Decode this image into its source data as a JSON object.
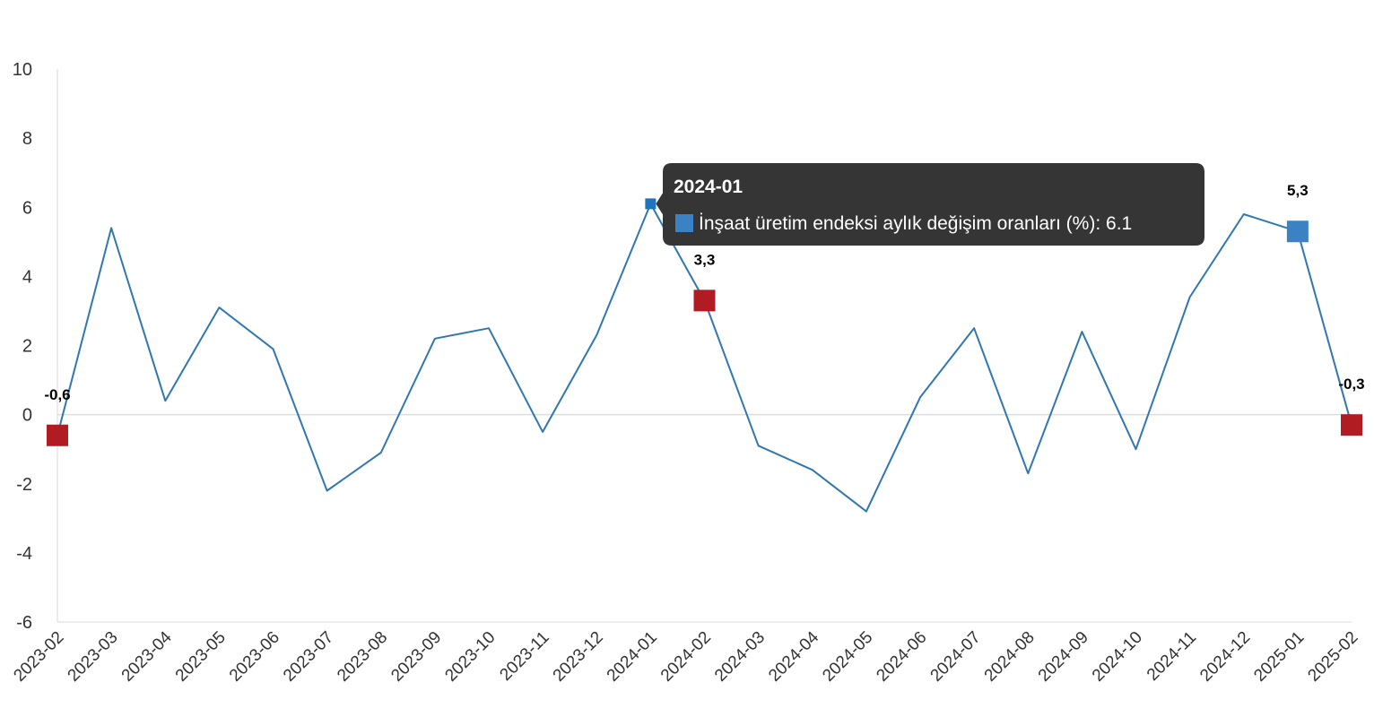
{
  "chart_data": {
    "type": "line",
    "title": "",
    "xlabel": "",
    "ylabel": "",
    "ylim": [
      -6,
      10
    ],
    "yticks": [
      -6,
      -4,
      -2,
      0,
      2,
      4,
      6,
      8,
      10
    ],
    "grid": false,
    "categories": [
      "2023-02",
      "2023-03",
      "2023-04",
      "2023-05",
      "2023-06",
      "2023-07",
      "2023-08",
      "2023-09",
      "2023-10",
      "2023-11",
      "2023-12",
      "2024-01",
      "2024-02",
      "2024-03",
      "2024-04",
      "2024-05",
      "2024-06",
      "2024-07",
      "2024-08",
      "2024-09",
      "2024-10",
      "2024-11",
      "2024-12",
      "2025-01",
      "2025-02"
    ],
    "series": [
      {
        "name": "İnşaat üretim endeksi aylık değişim oranları (%)",
        "color": "#2f77b1",
        "values": [
          -0.6,
          5.4,
          0.4,
          3.1,
          1.9,
          -2.2,
          -1.1,
          2.2,
          2.5,
          -0.5,
          2.3,
          6.1,
          3.3,
          -0.9,
          -1.6,
          -2.8,
          0.5,
          2.5,
          -1.7,
          2.4,
          -1.0,
          3.4,
          5.8,
          5.3,
          -0.3
        ]
      }
    ],
    "highlighted_points": [
      {
        "category": "2023-02",
        "label": "-0,6",
        "color": "#b01c22"
      },
      {
        "category": "2024-02",
        "label": "3,3",
        "color": "#b01c22"
      },
      {
        "category": "2025-01",
        "label": "5,3",
        "color": "#3a82c4"
      },
      {
        "category": "2025-02",
        "label": "-0,3",
        "color": "#b01c22"
      }
    ],
    "hovered_point": {
      "category": "2024-01"
    },
    "tooltip": {
      "title": "2024-01",
      "text": "İnşaat üretim endeksi aylık değişim oranları (%): 6.1",
      "background": "#353535",
      "swatch_color": "#3a82c4"
    }
  }
}
